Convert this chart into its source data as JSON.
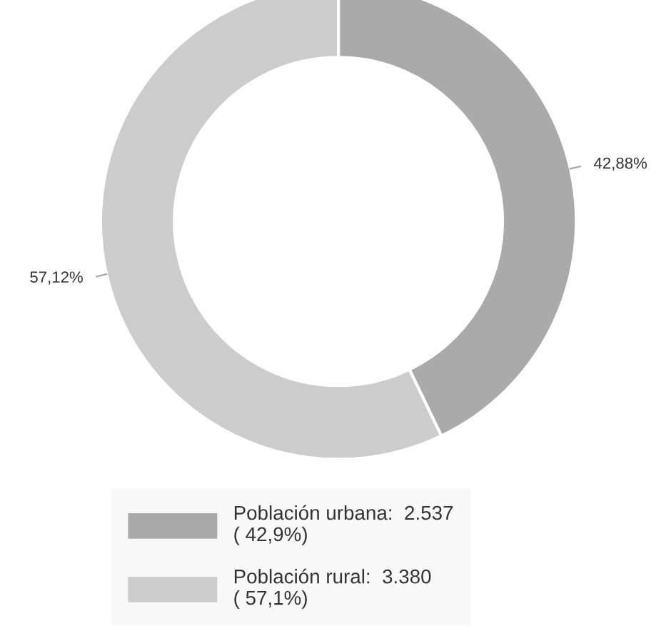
{
  "chart_data": {
    "type": "donut",
    "categories": [
      "Población urbana:  2.537\n( 42,9%)",
      "Población rural:  3.380\n( 57,1%)"
    ],
    "values": [
      42.88,
      57.12
    ],
    "colors": [
      "#aaaaaa",
      "#cccccc"
    ],
    "value_labels": [
      "42,88%",
      "57,12%"
    ],
    "legend": "bottom"
  }
}
